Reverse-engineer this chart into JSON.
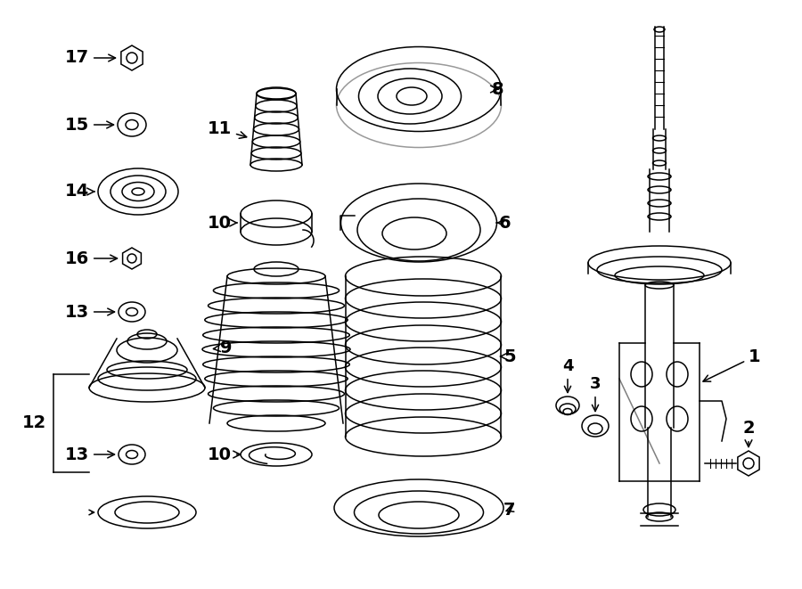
{
  "bg_color": "#ffffff",
  "line_color": "#000000",
  "lw": 1.1,
  "fig_w": 9.0,
  "fig_h": 6.61,
  "dpi": 100
}
